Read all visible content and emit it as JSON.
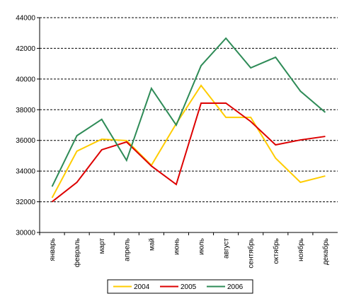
{
  "chart_data": {
    "type": "line",
    "categories": [
      "январь",
      "февраль",
      "март",
      "апрель",
      "май",
      "июнь",
      "июль",
      "август",
      "сентябрь",
      "октябрь",
      "ноябрь",
      "декабрь"
    ],
    "series": [
      {
        "name": "2004",
        "color": "#ffcc00",
        "values": [
          32260,
          35300,
          36080,
          35990,
          34380,
          37090,
          39580,
          37500,
          37500,
          34840,
          33270,
          33680
        ]
      },
      {
        "name": "2005",
        "color": "#dd0000",
        "values": [
          32000,
          33270,
          35390,
          35900,
          34330,
          33130,
          38430,
          38430,
          37230,
          35710,
          36030,
          36260
        ]
      },
      {
        "name": "2006",
        "color": "#2e8b57",
        "values": [
          32990,
          36310,
          37370,
          34700,
          39390,
          37000,
          40870,
          42660,
          40730,
          41420,
          39210,
          37830
        ]
      }
    ],
    "ylim": [
      30000,
      44000
    ],
    "yticks": [
      30000,
      32000,
      34000,
      36000,
      38000,
      40000,
      42000,
      44000
    ],
    "grid": true,
    "legend": "bottom"
  }
}
